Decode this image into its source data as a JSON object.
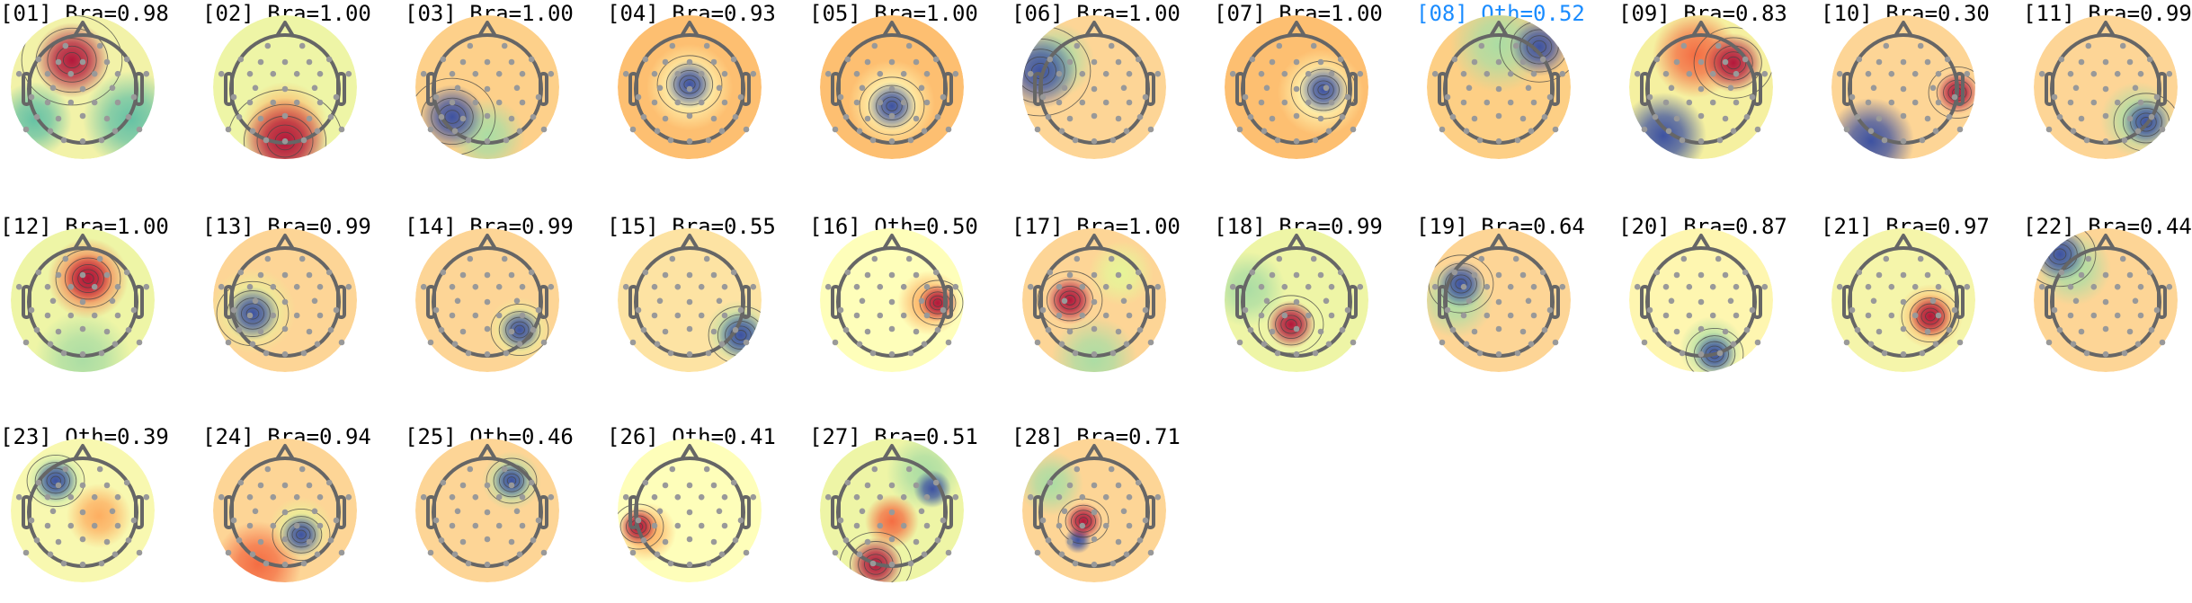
{
  "chart_data": {
    "type": "topomap-grid",
    "colormap": [
      "#3d52a1",
      "#66c2a5",
      "#abdda4",
      "#fefeba",
      "#fdae61",
      "#f46d43",
      "#b2183b"
    ],
    "title_color": "#000000",
    "highlight_color": "#1a8cff",
    "components": [
      {
        "title": "[01] Bra=0.98",
        "id": "01",
        "label": "Bra",
        "score": 0.98,
        "highlighted": false
      },
      {
        "title": "[02] Bra=1.00",
        "id": "02",
        "label": "Bra",
        "score": 1.0,
        "highlighted": false
      },
      {
        "title": "[03] Bra=1.00",
        "id": "03",
        "label": "Bra",
        "score": 1.0,
        "highlighted": false
      },
      {
        "title": "[04] Bra=0.93",
        "id": "04",
        "label": "Bra",
        "score": 0.93,
        "highlighted": false
      },
      {
        "title": "[05] Bra=1.00",
        "id": "05",
        "label": "Bra",
        "score": 1.0,
        "highlighted": false
      },
      {
        "title": "[06] Bra=1.00",
        "id": "06",
        "label": "Bra",
        "score": 1.0,
        "highlighted": false
      },
      {
        "title": "[07] Bra=1.00",
        "id": "07",
        "label": "Bra",
        "score": 1.0,
        "highlighted": false
      },
      {
        "title": "[08] Oth=0.52",
        "id": "08",
        "label": "Oth",
        "score": 0.52,
        "highlighted": true
      },
      {
        "title": "[09] Bra=0.83",
        "id": "09",
        "label": "Bra",
        "score": 0.83,
        "highlighted": false
      },
      {
        "title": "[10] Bra=0.30",
        "id": "10",
        "label": "Bra",
        "score": 0.3,
        "highlighted": false
      },
      {
        "title": "[11] Bra=0.99",
        "id": "11",
        "label": "Bra",
        "score": 0.99,
        "highlighted": false
      },
      {
        "title": "[12] Bra=1.00",
        "id": "12",
        "label": "Bra",
        "score": 1.0,
        "highlighted": false
      },
      {
        "title": "[13] Bra=0.99",
        "id": "13",
        "label": "Bra",
        "score": 0.99,
        "highlighted": false
      },
      {
        "title": "[14] Bra=0.99",
        "id": "14",
        "label": "Bra",
        "score": 0.99,
        "highlighted": false
      },
      {
        "title": "[15] Bra=0.55",
        "id": "15",
        "label": "Bra",
        "score": 0.55,
        "highlighted": false
      },
      {
        "title": "[16] Oth=0.50",
        "id": "16",
        "label": "Oth",
        "score": 0.5,
        "highlighted": false
      },
      {
        "title": "[17] Bra=1.00",
        "id": "17",
        "label": "Bra",
        "score": 1.0,
        "highlighted": false
      },
      {
        "title": "[18] Bra=0.99",
        "id": "18",
        "label": "Bra",
        "score": 0.99,
        "highlighted": false
      },
      {
        "title": "[19] Bra=0.64",
        "id": "19",
        "label": "Bra",
        "score": 0.64,
        "highlighted": false
      },
      {
        "title": "[20] Bra=0.87",
        "id": "20",
        "label": "Bra",
        "score": 0.87,
        "highlighted": false
      },
      {
        "title": "[21] Bra=0.97",
        "id": "21",
        "label": "Bra",
        "score": 0.97,
        "highlighted": false
      },
      {
        "title": "[22] Bra=0.44",
        "id": "22",
        "label": "Bra",
        "score": 0.44,
        "highlighted": false
      },
      {
        "title": "[23] Oth=0.39",
        "id": "23",
        "label": "Oth",
        "score": 0.39,
        "highlighted": false
      },
      {
        "title": "[24] Bra=0.94",
        "id": "24",
        "label": "Bra",
        "score": 0.94,
        "highlighted": false
      },
      {
        "title": "[25] Oth=0.46",
        "id": "25",
        "label": "Oth",
        "score": 0.46,
        "highlighted": false
      },
      {
        "title": "[26] Oth=0.41",
        "id": "26",
        "label": "Oth",
        "score": 0.41,
        "highlighted": false
      },
      {
        "title": "[27] Bra=0.51",
        "id": "27",
        "label": "Bra",
        "score": 0.51,
        "highlighted": false
      },
      {
        "title": "[28] Bra=0.71",
        "id": "28",
        "label": "Bra",
        "score": 0.71,
        "highlighted": false
      }
    ]
  }
}
